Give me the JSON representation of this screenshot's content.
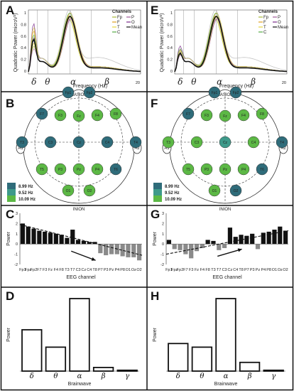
{
  "panel_labels": [
    "A",
    "B",
    "C",
    "D",
    "E",
    "F",
    "G",
    "H"
  ],
  "spectrum": {
    "xlabel": "Frequency (Hz)",
    "ylabel": "Quadratic Power (microV²)",
    "x_end_tick": "20",
    "y_ticks": [
      "1",
      "0.8",
      "0.6",
      "0.4",
      "0.2",
      "0"
    ],
    "bands": [
      "δ",
      "θ",
      "α",
      "β"
    ],
    "legend_title": "Channels",
    "legend_items": [
      {
        "label": "Fp",
        "color": "#a8b83a"
      },
      {
        "label": "P",
        "color": "#a05a9a"
      },
      {
        "label": "F",
        "color": "#e0a020"
      },
      {
        "label": "O",
        "color": "#7a2a8a"
      },
      {
        "label": "T",
        "color": "#e6d640"
      },
      {
        "label": "Mean",
        "color": "#111111"
      },
      {
        "label": "C",
        "color": "#55aa44"
      }
    ]
  },
  "topo": {
    "nasion": "NASION",
    "inion": "INION",
    "left_ear": "A1",
    "right_ear": "A2",
    "colorbar": [
      {
        "label": "8.99 Hz",
        "color": "#2f6c7a"
      },
      {
        "label": "9.52 Hz",
        "color": "#3e9a8a"
      },
      {
        "label": "10.09 Hz",
        "color": "#5cb845"
      }
    ],
    "electrodes": [
      "Fp1",
      "Fp2",
      "F7",
      "F3",
      "Fz",
      "F4",
      "F8",
      "T3",
      "C3",
      "Cz",
      "C4",
      "T4",
      "T5",
      "P3",
      "Pz",
      "P4",
      "T6",
      "O1",
      "O2"
    ],
    "left_colors": [
      "#2f6c7a",
      "#2f6c7a",
      "#2f6c7a",
      "#5cb845",
      "#5cb845",
      "#5cb845",
      "#5cb845",
      "#2f6c7a",
      "#2f6c7a",
      "#2f6c7a",
      "#2f6c7a",
      "#2f6c7a",
      "#5cb845",
      "#5cb845",
      "#5cb845",
      "#5cb845",
      "#2f6c7a",
      "#5cb845",
      "#5cb845"
    ],
    "right_colors": [
      "#2f6c7a",
      "#2f6c7a",
      "#2f6c7a",
      "#5cb845",
      "#5cb845",
      "#5cb845",
      "#5cb845",
      "#5cb845",
      "#5cb845",
      "#3e9a8a",
      "#5cb845",
      "#2f6c7a",
      "#5cb845",
      "#5cb845",
      "#5cb845",
      "#5cb845",
      "#2f6c7a",
      "#5cb845",
      "#2f6c7a"
    ]
  },
  "chart_data": [
    {
      "type": "bar",
      "panel": "C",
      "xlabel": "EEG channel",
      "ylabel": "Power",
      "ylim": [
        -2,
        3
      ],
      "y_ticks": [
        "3",
        "2",
        "1",
        "0",
        "-1",
        "-2"
      ],
      "categories": [
        "Fp1",
        "Fpz",
        "Fp2",
        "F7",
        "F3",
        "Fz",
        "F4",
        "F8",
        "T3",
        "T7",
        "C3",
        "Cz",
        "C4",
        "T8",
        "P7",
        "P3",
        "Pz",
        "P4",
        "P8",
        "O1",
        "Oz",
        "O2"
      ],
      "values": [
        2.0,
        1.7,
        1.5,
        1.3,
        1.2,
        1.1,
        1.0,
        0.9,
        0.6,
        1.4,
        0.4,
        0.3,
        0.2,
        0.2,
        -0.9,
        -1.1,
        -1.0,
        -1.0,
        -1.2,
        -1.3,
        -1.3,
        -1.6
      ]
    },
    {
      "type": "bar",
      "panel": "G",
      "xlabel": "EEG channel",
      "ylabel": "Power",
      "ylim": [
        -2,
        3
      ],
      "y_ticks": [
        "3",
        "2",
        "1",
        "0",
        "-1",
        "-2"
      ],
      "categories": [
        "Fp1",
        "Fpz",
        "Fp2",
        "F7",
        "F3",
        "Fz",
        "F4",
        "F8",
        "T3",
        "T7",
        "C3",
        "Cz",
        "C4",
        "T8",
        "P7",
        "P3",
        "Pz",
        "P4",
        "P8",
        "O1",
        "Oz",
        "O2"
      ],
      "values": [
        0.4,
        -0.5,
        -0.6,
        -1.0,
        -1.4,
        -0.7,
        -0.4,
        0.4,
        0.3,
        -0.6,
        -0.4,
        1.6,
        0.7,
        0.9,
        0.8,
        1.0,
        -0.5,
        1.1,
        1.2,
        1.4,
        1.7,
        1.3
      ]
    },
    {
      "type": "bar",
      "panel": "D",
      "xlabel": "Brainwave",
      "ylabel": "Power",
      "categories": [
        "δ",
        "θ",
        "α",
        "β",
        "γ"
      ],
      "values": [
        0.57,
        0.33,
        1.0,
        0.05,
        0.0
      ]
    },
    {
      "type": "bar",
      "panel": "H",
      "xlabel": "Brainwave",
      "ylabel": "Power",
      "categories": [
        "δ",
        "θ",
        "α",
        "β",
        "γ"
      ],
      "values": [
        0.38,
        0.33,
        1.0,
        0.12,
        0.0
      ]
    }
  ]
}
